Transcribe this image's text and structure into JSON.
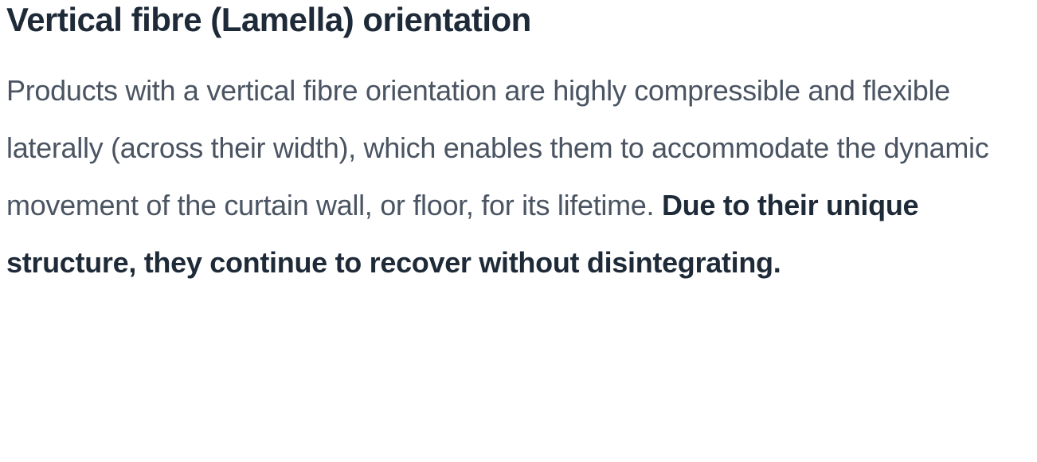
{
  "heading": "Vertical fibre (Lamella) orientation",
  "body_regular": "Products with a vertical fibre orientation are highly compressible and flexible laterally (across their width), which enables them to accommodate the dynamic movement of the curtain wall, or floor, for its lifetime. ",
  "body_bold": "Due to their unique structure, they continue to recover without disintegrating.",
  "colors": {
    "heading_color": "#1e2a38",
    "body_color": "#4a5462",
    "bold_color": "#1e2a38",
    "background": "#ffffff"
  },
  "typography": {
    "heading_fontsize": 42,
    "heading_weight": 700,
    "body_fontsize": 36,
    "body_weight": 400,
    "body_lineheight": 2.0,
    "bold_weight": 700
  }
}
